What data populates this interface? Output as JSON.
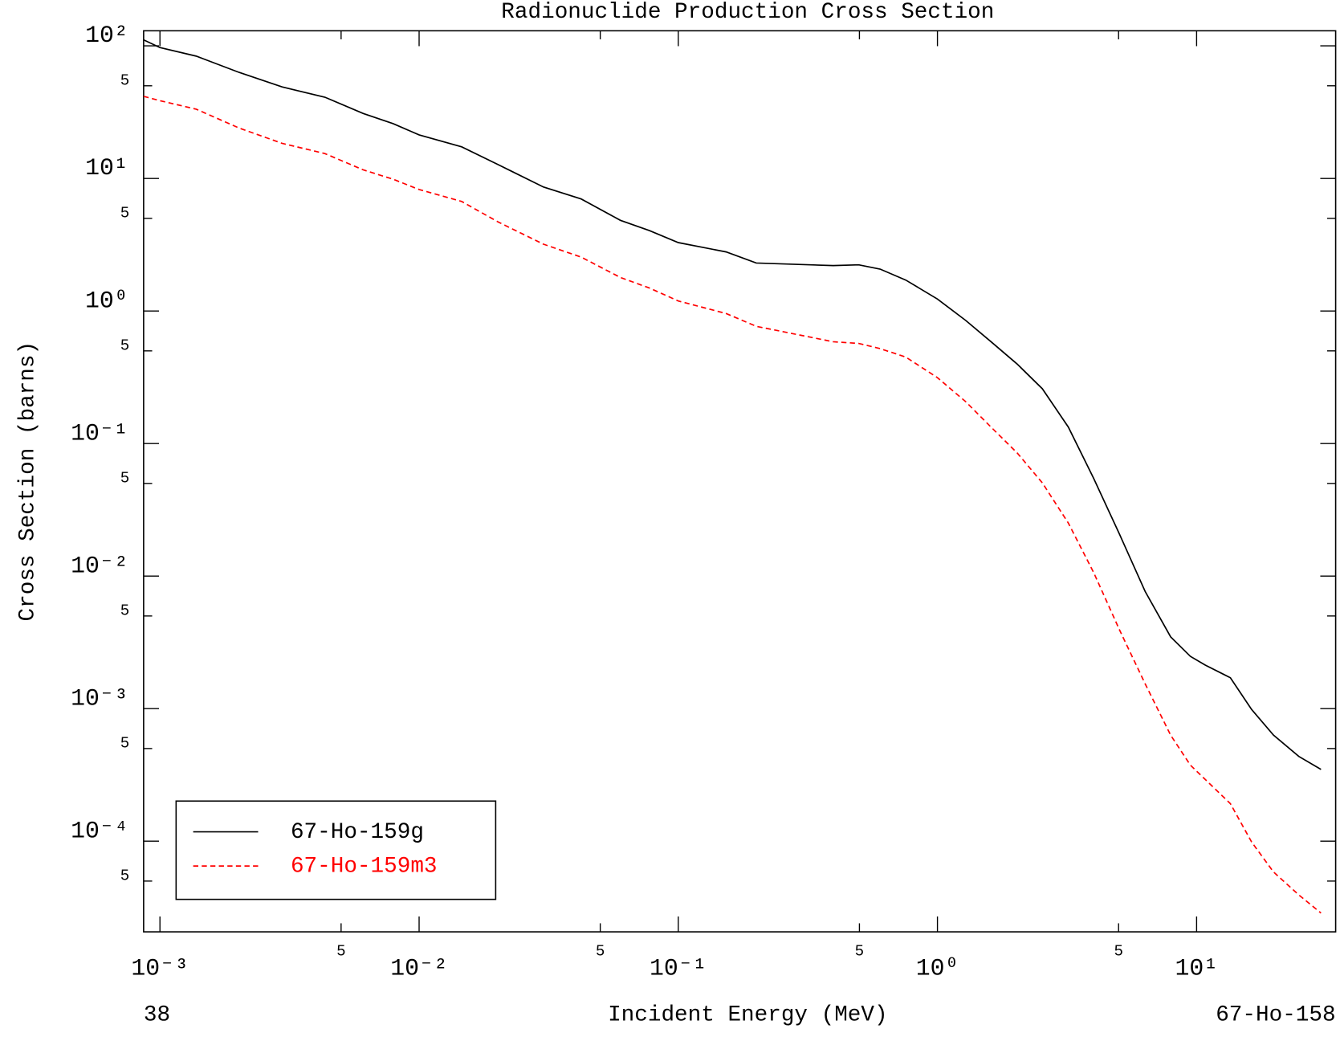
{
  "chart_data": {
    "type": "line",
    "title": "Radionuclide Production Cross Section",
    "x_label": "Incident Energy (MeV)",
    "y_label": "Cross Section (barns)",
    "footer_left": "38",
    "footer_right": "67-Ho-158",
    "x_scale": "log",
    "y_scale": "log",
    "xlim": [
      0.000865,
      34.4
    ],
    "ylim": [
      2.07e-05,
      130
    ],
    "xticks": [
      {
        "value": 0.001,
        "label": "10⁻³"
      },
      {
        "value": 0.005,
        "label": "5"
      },
      {
        "value": 0.01,
        "label": "10⁻²"
      },
      {
        "value": 0.05,
        "label": "5"
      },
      {
        "value": 0.1,
        "label": "10⁻¹"
      },
      {
        "value": 0.5,
        "label": "5"
      },
      {
        "value": 1,
        "label": "10⁰"
      },
      {
        "value": 5,
        "label": "5"
      },
      {
        "value": 10,
        "label": "10¹"
      }
    ],
    "yticks": [
      {
        "value": 100,
        "label": "10²"
      },
      {
        "value": 50,
        "label": "5"
      },
      {
        "value": 10,
        "label": "10¹"
      },
      {
        "value": 5,
        "label": "5"
      },
      {
        "value": 1,
        "label": "10⁰"
      },
      {
        "value": 0.5,
        "label": "5"
      },
      {
        "value": 0.1,
        "label": "10⁻¹"
      },
      {
        "value": 0.05,
        "label": "5"
      },
      {
        "value": 0.01,
        "label": "10⁻²"
      },
      {
        "value": 0.005,
        "label": "5"
      },
      {
        "value": 0.001,
        "label": "10⁻³"
      },
      {
        "value": 0.0005,
        "label": "5"
      },
      {
        "value": 0.0001,
        "label": "10⁻⁴"
      },
      {
        "value": 5e-05,
        "label": "5"
      }
    ],
    "legend": "lower left",
    "x": [
      0.000865,
      0.001,
      0.00138,
      0.00202,
      0.00296,
      0.00433,
      0.00609,
      0.00794,
      0.01,
      0.0146,
      0.0202,
      0.0302,
      0.0422,
      0.0598,
      0.0774,
      0.1,
      0.153,
      0.2,
      0.396,
      0.497,
      0.601,
      0.755,
      1,
      1.285,
      1.61,
      2.03,
      2.54,
      3.2,
      4.01,
      5.04,
      6.33,
      7.94,
      9.46,
      10.8,
      13.5,
      16.3,
      19.8,
      24.8,
      30.2
    ],
    "series": [
      {
        "name": "67-Ho-159g",
        "color": "#000000",
        "linestyle": "solid",
        "values": [
          111,
          97.1,
          83.7,
          63.1,
          49.0,
          41.0,
          30.9,
          25.9,
          21.3,
          17.3,
          12.7,
          8.61,
          7.0,
          4.83,
          4.04,
          3.28,
          2.79,
          2.3,
          2.2,
          2.23,
          2.07,
          1.71,
          1.23,
          0.849,
          0.586,
          0.398,
          0.259,
          0.133,
          0.0544,
          0.0207,
          0.00766,
          0.00348,
          0.00248,
          0.00213,
          0.00171,
          0.000986,
          0.000631,
          0.000436,
          0.000348
        ]
      },
      {
        "name": "67-Ho-159m3",
        "color": "#ff0000",
        "linestyle": "dashed",
        "values": [
          41.6,
          38.6,
          33.3,
          24.0,
          18.4,
          15.4,
          11.6,
          9.86,
          8.25,
          6.7,
          4.69,
          3.19,
          2.55,
          1.79,
          1.49,
          1.19,
          0.957,
          0.766,
          0.586,
          0.569,
          0.52,
          0.449,
          0.314,
          0.207,
          0.133,
          0.085,
          0.0505,
          0.0251,
          0.0106,
          0.00393,
          0.00154,
          0.000631,
          0.000375,
          0.000292,
          0.000192,
          9.86e-05,
          5.86e-05,
          3.93e-05,
          2.87e-05
        ]
      }
    ]
  }
}
